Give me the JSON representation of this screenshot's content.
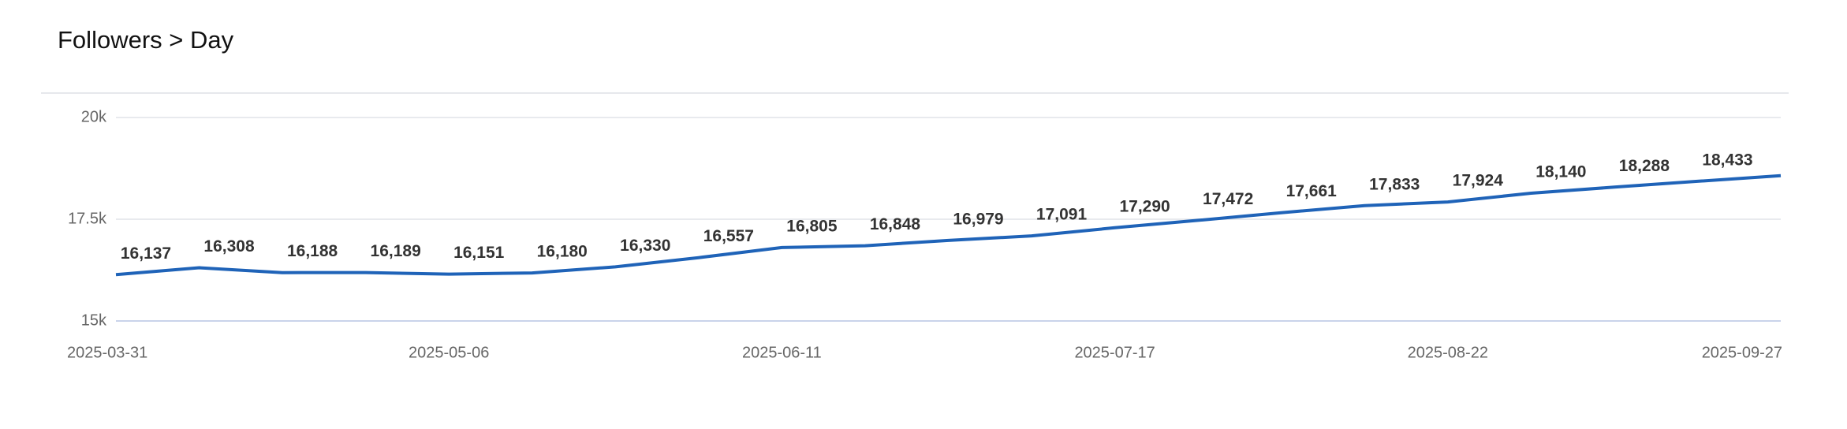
{
  "chart_data": {
    "type": "line",
    "title": "Followers > Day",
    "x": [
      "2025-03-31",
      "2025-04-09",
      "2025-04-18",
      "2025-04-27",
      "2025-05-06",
      "2025-05-15",
      "2025-05-24",
      "2025-06-02",
      "2025-06-11",
      "2025-06-20",
      "2025-06-29",
      "2025-07-08",
      "2025-07-17",
      "2025-07-26",
      "2025-08-04",
      "2025-08-13",
      "2025-08-22",
      "2025-08-31",
      "2025-09-09",
      "2025-09-18",
      "2025-09-27"
    ],
    "series": [
      {
        "name": "Followers",
        "color": "#1f63b8",
        "values": [
          16137,
          16308,
          16188,
          16189,
          16151,
          16180,
          16330,
          16557,
          16805,
          16848,
          16979,
          17091,
          17290,
          17472,
          17661,
          17833,
          17924,
          18140,
          18288,
          18433,
          18570
        ],
        "value_labels": [
          "16,137",
          "16,308",
          "16,188",
          "16,189",
          "16,151",
          "16,180",
          "16,330",
          "16,557",
          "16,805",
          "16,848",
          "16,979",
          "17,091",
          "17,290",
          "17,472",
          "17,661",
          "17,833",
          "17,924",
          "18,140",
          "18,288",
          "18,433",
          null
        ]
      }
    ],
    "xlim": [
      "2025-03-31",
      "2025-09-27"
    ],
    "xticks": [
      "2025-03-31",
      "2025-05-06",
      "2025-06-11",
      "2025-07-17",
      "2025-08-22",
      "2025-09-27"
    ],
    "ylim": [
      15000,
      20000
    ],
    "yticks": [
      {
        "value": 15000,
        "label": "15k"
      },
      {
        "value": 17500,
        "label": "17.5k"
      },
      {
        "value": 20000,
        "label": "20k"
      }
    ],
    "grid": true
  }
}
